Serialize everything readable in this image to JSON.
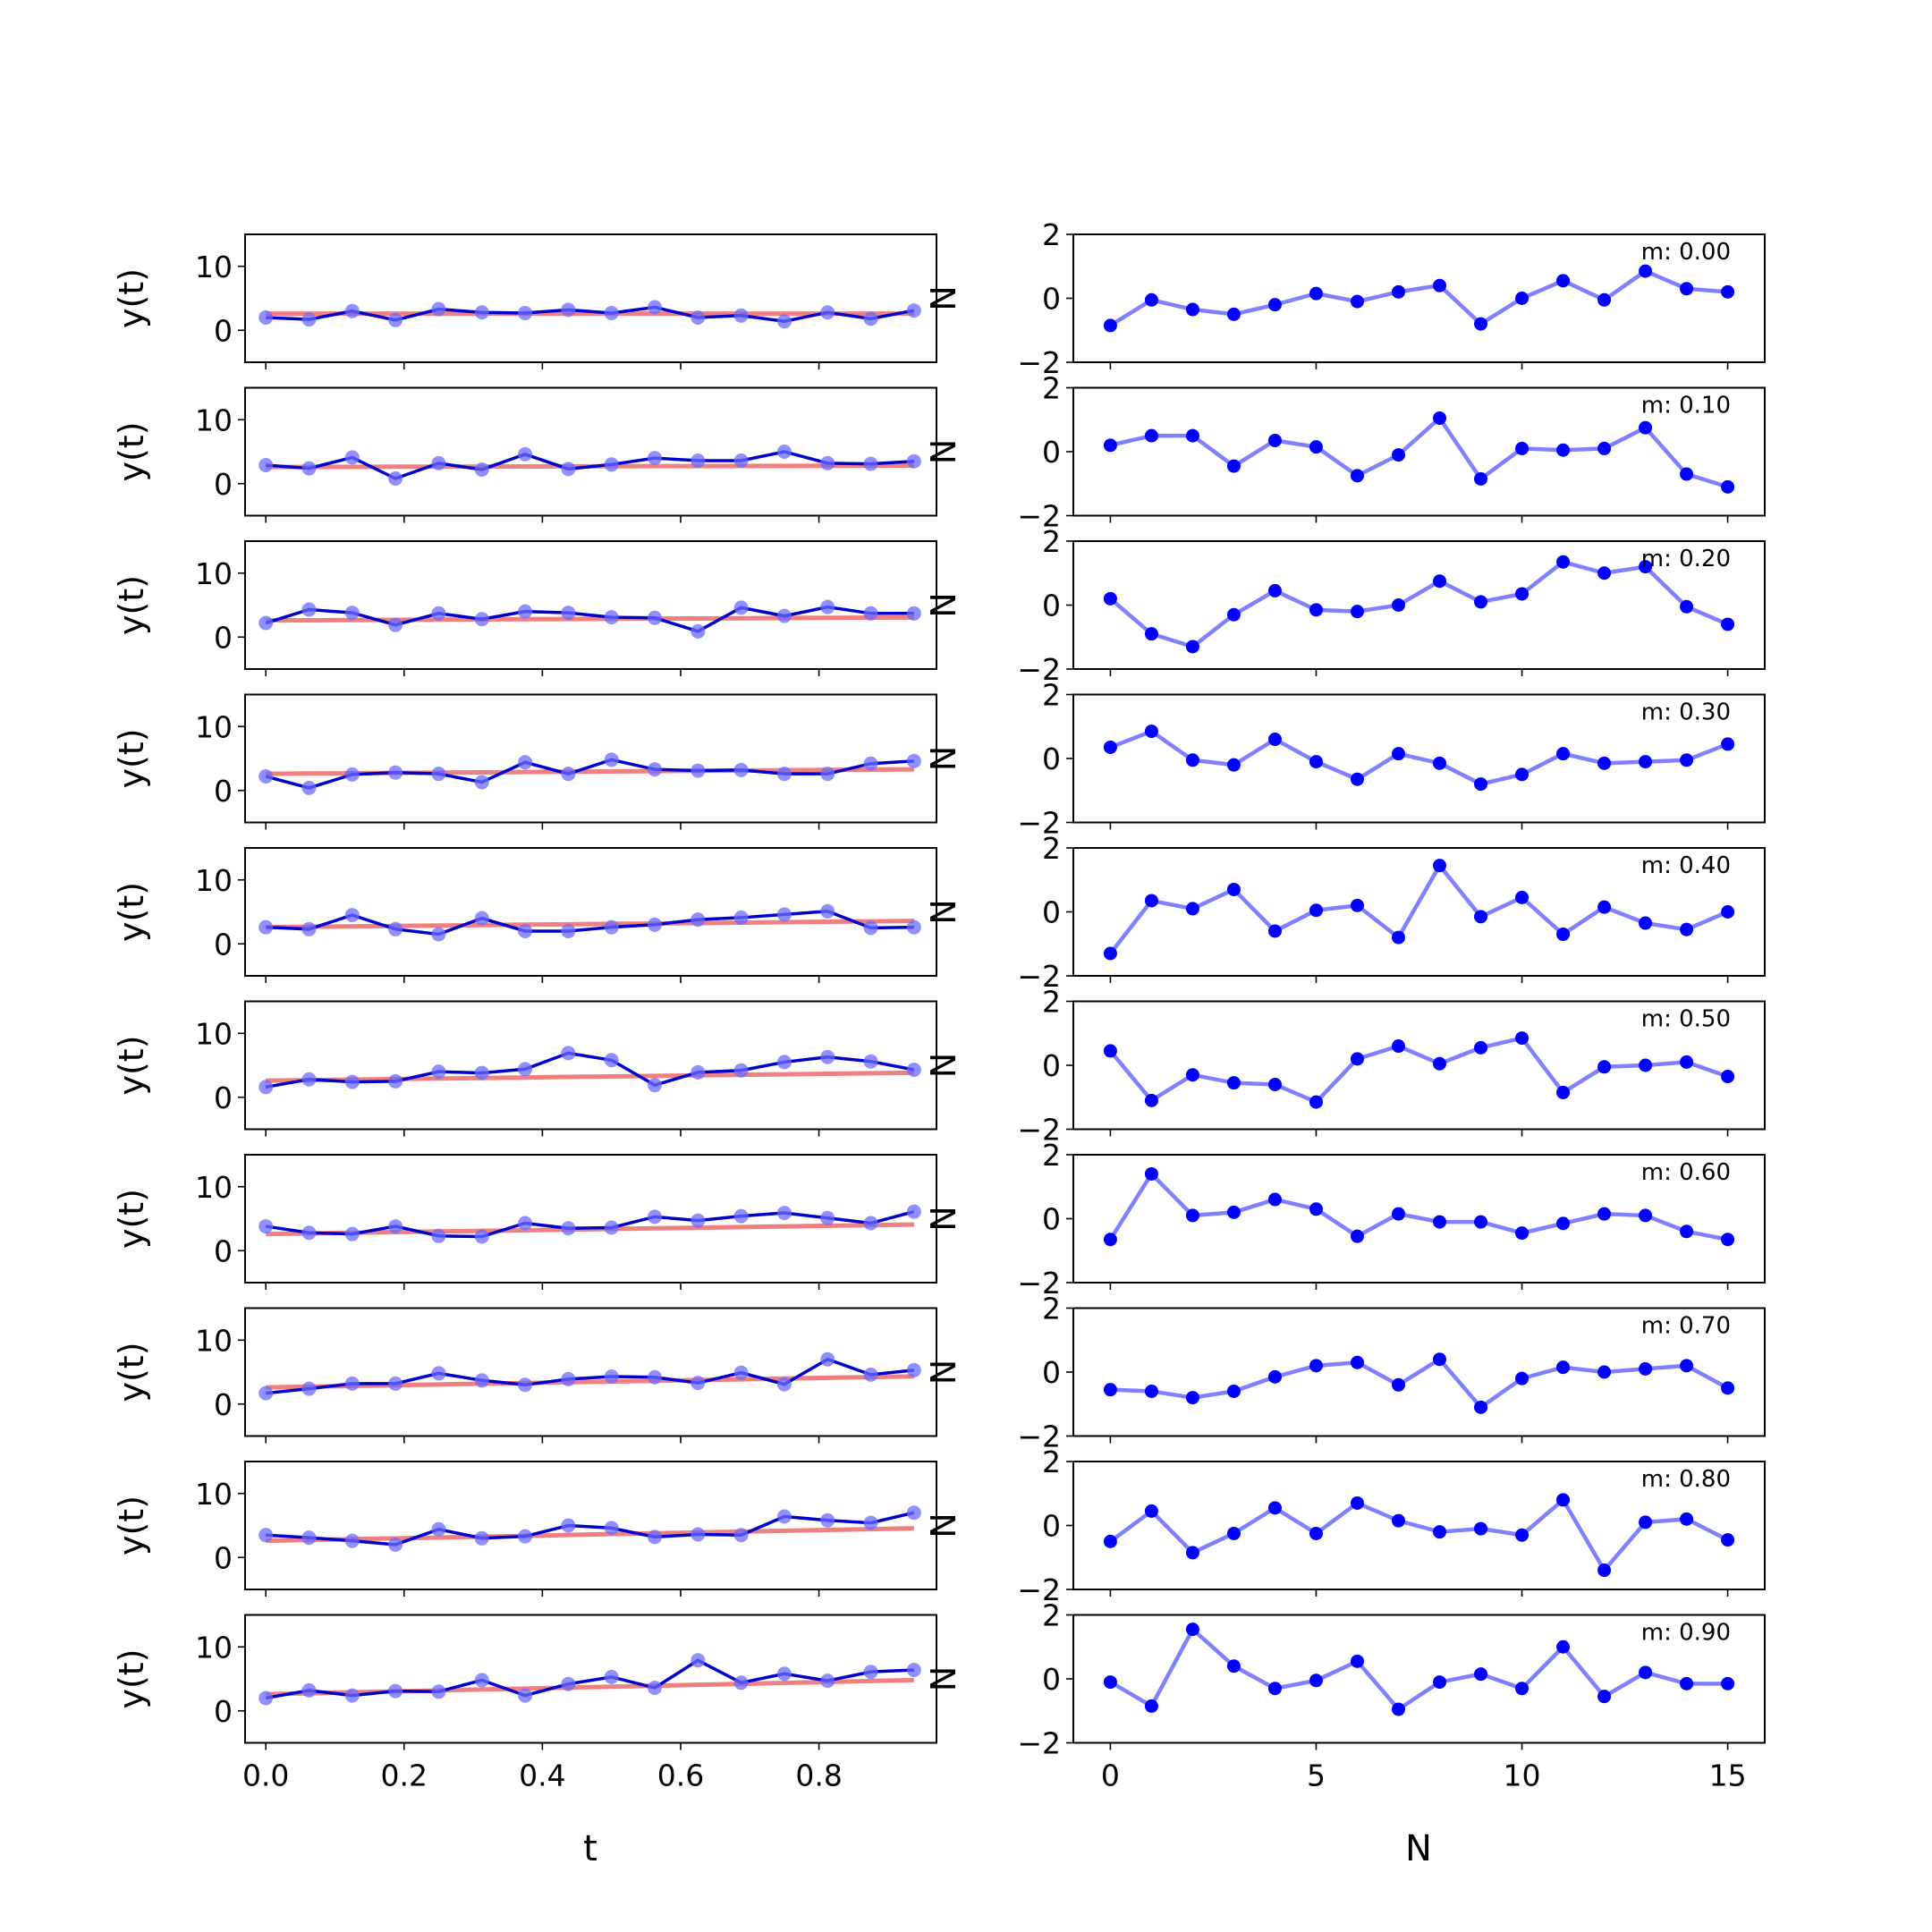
{
  "figure": {
    "left_xlabel": "t",
    "right_xlabel": "N",
    "left_ylabel": "y(t)",
    "right_ylabel": "N",
    "left_xticks": [
      "0.0",
      "0.2",
      "0.4",
      "0.6",
      "0.8"
    ],
    "right_xticks": [
      "0",
      "5",
      "10",
      "15"
    ]
  },
  "colors": {
    "fit_line": "#f08080",
    "data_line": "#0000cc",
    "data_points": "#6a6aff",
    "resid_line": "#8080ff",
    "resid_points": "#0000ff"
  },
  "chart_data": [
    {
      "type": "line",
      "role": "left",
      "index": 0,
      "x": [
        0,
        0.0625,
        0.125,
        0.1875,
        0.25,
        0.3125,
        0.375,
        0.4375,
        0.5,
        0.5625,
        0.625,
        0.6875,
        0.75,
        0.8125,
        0.875,
        0.9375
      ],
      "series": [
        {
          "values": [
            2.0,
            1.7,
            3.0,
            1.6,
            3.3,
            2.8,
            2.7,
            3.2,
            2.7,
            3.6,
            2.0,
            2.3,
            1.4,
            2.8,
            1.8,
            3.1
          ]
        },
        {
          "values": [
            2.6,
            2.6,
            2.6,
            2.6,
            2.6,
            2.6,
            2.6,
            2.6,
            2.6,
            2.6,
            2.6,
            2.6,
            2.6,
            2.6,
            2.6,
            2.6
          ]
        }
      ],
      "ylim": [
        -5,
        15
      ],
      "yticks": [
        0,
        10
      ],
      "xlim": [
        -0.03,
        0.97
      ]
    },
    {
      "type": "line",
      "role": "right",
      "index": 0,
      "annotation": "m: 0.00",
      "x": [
        0,
        1,
        2,
        3,
        4,
        5,
        6,
        7,
        8,
        9,
        10,
        11,
        12,
        13,
        14,
        15
      ],
      "values": [
        -0.85,
        -0.05,
        -0.35,
        -0.5,
        -0.2,
        0.15,
        -0.1,
        0.2,
        0.4,
        -0.8,
        0.0,
        0.55,
        -0.05,
        0.85,
        0.3,
        0.2
      ],
      "ylim": [
        -2,
        2
      ],
      "yticks": [
        -2,
        0,
        2
      ],
      "xlim": [
        -0.9,
        15.9
      ]
    },
    {
      "type": "line",
      "role": "left",
      "index": 1,
      "x": [
        0,
        0.0625,
        0.125,
        0.1875,
        0.25,
        0.3125,
        0.375,
        0.4375,
        0.5,
        0.5625,
        0.625,
        0.6875,
        0.75,
        0.8125,
        0.875,
        0.9375
      ],
      "series": [
        {
          "values": [
            2.9,
            2.4,
            4.1,
            0.8,
            3.2,
            2.2,
            4.6,
            2.3,
            3.0,
            4.0,
            3.6,
            3.6,
            5.0,
            3.2,
            3.1,
            3.5
          ]
        },
        {
          "values": [
            2.6,
            2.62,
            2.63,
            2.65,
            2.66,
            2.68,
            2.69,
            2.71,
            2.72,
            2.74,
            2.75,
            2.77,
            2.78,
            2.8,
            2.81,
            2.83
          ]
        }
      ],
      "ylim": [
        -5,
        15
      ],
      "yticks": [
        0,
        10
      ],
      "xlim": [
        -0.03,
        0.97
      ]
    },
    {
      "type": "line",
      "role": "right",
      "index": 1,
      "annotation": "m: 0.10",
      "x": [
        0,
        1,
        2,
        3,
        4,
        5,
        6,
        7,
        8,
        9,
        10,
        11,
        12,
        13,
        14,
        15
      ],
      "values": [
        0.2,
        0.5,
        0.5,
        -0.45,
        0.35,
        0.15,
        -0.75,
        -0.1,
        1.05,
        -0.85,
        0.1,
        0.05,
        0.1,
        0.75,
        -0.7,
        -1.1
      ],
      "ylim": [
        -2,
        2
      ],
      "yticks": [
        -2,
        0,
        2
      ],
      "xlim": [
        -0.9,
        15.9
      ]
    },
    {
      "type": "line",
      "role": "left",
      "index": 2,
      "x": [
        0,
        0.0625,
        0.125,
        0.1875,
        0.25,
        0.3125,
        0.375,
        0.4375,
        0.5,
        0.5625,
        0.625,
        0.6875,
        0.75,
        0.8125,
        0.875,
        0.9375
      ],
      "series": [
        {
          "values": [
            2.2,
            4.3,
            3.8,
            1.9,
            3.7,
            2.8,
            4.0,
            3.8,
            3.1,
            3.0,
            0.9,
            4.6,
            3.3,
            4.7,
            3.7,
            3.7
          ]
        },
        {
          "values": [
            2.6,
            2.63,
            2.66,
            2.69,
            2.73,
            2.76,
            2.79,
            2.82,
            2.85,
            2.88,
            2.91,
            2.94,
            2.98,
            3.01,
            3.04,
            3.07
          ]
        }
      ],
      "ylim": [
        -5,
        15
      ],
      "yticks": [
        0,
        10
      ],
      "xlim": [
        -0.03,
        0.97
      ]
    },
    {
      "type": "line",
      "role": "right",
      "index": 2,
      "annotation": "m: 0.20",
      "x": [
        0,
        1,
        2,
        3,
        4,
        5,
        6,
        7,
        8,
        9,
        10,
        11,
        12,
        13,
        14,
        15
      ],
      "values": [
        0.2,
        -0.9,
        -1.3,
        -0.3,
        0.45,
        -0.15,
        -0.2,
        0.0,
        0.75,
        0.1,
        0.35,
        1.35,
        1.0,
        1.2,
        -0.05,
        -0.6
      ],
      "ylim": [
        -2,
        2
      ],
      "yticks": [
        -2,
        0,
        2
      ],
      "xlim": [
        -0.9,
        15.9
      ]
    },
    {
      "type": "line",
      "role": "left",
      "index": 3,
      "x": [
        0,
        0.0625,
        0.125,
        0.1875,
        0.25,
        0.3125,
        0.375,
        0.4375,
        0.5,
        0.5625,
        0.625,
        0.6875,
        0.75,
        0.8125,
        0.875,
        0.9375
      ],
      "series": [
        {
          "values": [
            2.2,
            0.4,
            2.5,
            2.8,
            2.6,
            1.3,
            4.4,
            2.6,
            4.8,
            3.3,
            3.1,
            3.2,
            2.6,
            2.6,
            4.2,
            4.6
          ]
        },
        {
          "values": [
            2.6,
            2.65,
            2.69,
            2.74,
            2.79,
            2.84,
            2.88,
            2.93,
            2.98,
            3.03,
            3.07,
            3.12,
            3.17,
            3.22,
            3.26,
            3.31
          ]
        }
      ],
      "ylim": [
        -5,
        15
      ],
      "yticks": [
        0,
        10
      ],
      "xlim": [
        -0.03,
        0.97
      ]
    },
    {
      "type": "line",
      "role": "right",
      "index": 3,
      "annotation": "m: 0.30",
      "x": [
        0,
        1,
        2,
        3,
        4,
        5,
        6,
        7,
        8,
        9,
        10,
        11,
        12,
        13,
        14,
        15
      ],
      "values": [
        0.35,
        0.85,
        -0.05,
        -0.2,
        0.6,
        -0.1,
        -0.65,
        0.15,
        -0.15,
        -0.8,
        -0.5,
        0.15,
        -0.15,
        -0.1,
        -0.05,
        0.45
      ],
      "ylim": [
        -2,
        2
      ],
      "yticks": [
        -2,
        0,
        2
      ],
      "xlim": [
        -0.9,
        15.9
      ]
    },
    {
      "type": "line",
      "role": "left",
      "index": 4,
      "x": [
        0,
        0.0625,
        0.125,
        0.1875,
        0.25,
        0.3125,
        0.375,
        0.4375,
        0.5,
        0.5625,
        0.625,
        0.6875,
        0.75,
        0.8125,
        0.875,
        0.9375
      ],
      "series": [
        {
          "values": [
            2.6,
            2.3,
            4.5,
            2.3,
            1.5,
            4.0,
            2.0,
            2.0,
            2.6,
            3.0,
            3.8,
            4.1,
            4.6,
            5.1,
            2.5,
            2.6
          ]
        },
        {
          "values": [
            2.6,
            2.67,
            2.73,
            2.8,
            2.86,
            2.93,
            3.0,
            3.06,
            3.13,
            3.19,
            3.26,
            3.33,
            3.39,
            3.46,
            3.52,
            3.59
          ]
        }
      ],
      "ylim": [
        -5,
        15
      ],
      "yticks": [
        0,
        10
      ],
      "xlim": [
        -0.03,
        0.97
      ]
    },
    {
      "type": "line",
      "role": "right",
      "index": 4,
      "annotation": "m: 0.40",
      "x": [
        0,
        1,
        2,
        3,
        4,
        5,
        6,
        7,
        8,
        9,
        10,
        11,
        12,
        13,
        14,
        15
      ],
      "values": [
        -1.3,
        0.35,
        0.1,
        0.7,
        -0.6,
        0.05,
        0.2,
        -0.8,
        1.45,
        -0.15,
        0.45,
        -0.7,
        0.15,
        -0.35,
        -0.55,
        0.0
      ],
      "ylim": [
        -2,
        2
      ],
      "yticks": [
        -2,
        0,
        2
      ],
      "xlim": [
        -0.9,
        15.9
      ]
    },
    {
      "type": "line",
      "role": "left",
      "index": 5,
      "x": [
        0,
        0.0625,
        0.125,
        0.1875,
        0.25,
        0.3125,
        0.375,
        0.4375,
        0.5,
        0.5625,
        0.625,
        0.6875,
        0.75,
        0.8125,
        0.875,
        0.9375
      ],
      "series": [
        {
          "values": [
            1.6,
            2.8,
            2.4,
            2.5,
            4.0,
            3.8,
            4.4,
            6.9,
            5.8,
            1.9,
            3.9,
            4.2,
            5.5,
            6.3,
            5.6,
            4.3
          ]
        },
        {
          "values": [
            2.6,
            2.68,
            2.77,
            2.85,
            2.93,
            3.01,
            3.1,
            3.18,
            3.26,
            3.34,
            3.43,
            3.51,
            3.59,
            3.67,
            3.76,
            3.84
          ]
        }
      ],
      "ylim": [
        -5,
        15
      ],
      "yticks": [
        0,
        10
      ],
      "xlim": [
        -0.03,
        0.97
      ]
    },
    {
      "type": "line",
      "role": "right",
      "index": 5,
      "annotation": "m: 0.50",
      "x": [
        0,
        1,
        2,
        3,
        4,
        5,
        6,
        7,
        8,
        9,
        10,
        11,
        12,
        13,
        14,
        15
      ],
      "values": [
        0.45,
        -1.1,
        -0.3,
        -0.55,
        -0.6,
        -1.15,
        0.2,
        0.6,
        0.05,
        0.55,
        0.85,
        -0.85,
        -0.05,
        0.0,
        0.1,
        -0.35
      ],
      "ylim": [
        -2,
        2
      ],
      "yticks": [
        -2,
        0,
        2
      ],
      "xlim": [
        -0.9,
        15.9
      ]
    },
    {
      "type": "line",
      "role": "left",
      "index": 6,
      "x": [
        0,
        0.0625,
        0.125,
        0.1875,
        0.25,
        0.3125,
        0.375,
        0.4375,
        0.5,
        0.5625,
        0.625,
        0.6875,
        0.75,
        0.8125,
        0.875,
        0.9375
      ],
      "series": [
        {
          "values": [
            3.8,
            2.8,
            2.6,
            3.8,
            2.3,
            2.2,
            4.3,
            3.5,
            3.6,
            5.3,
            4.7,
            5.4,
            5.9,
            5.1,
            4.3,
            6.1
          ]
        },
        {
          "values": [
            2.6,
            2.7,
            2.8,
            2.9,
            3.0,
            3.09,
            3.19,
            3.29,
            3.39,
            3.49,
            3.59,
            3.69,
            3.79,
            3.89,
            3.99,
            4.09
          ]
        }
      ],
      "ylim": [
        -5,
        15
      ],
      "yticks": [
        0,
        10
      ],
      "xlim": [
        -0.03,
        0.97
      ]
    },
    {
      "type": "line",
      "role": "right",
      "index": 6,
      "annotation": "m: 0.60",
      "x": [
        0,
        1,
        2,
        3,
        4,
        5,
        6,
        7,
        8,
        9,
        10,
        11,
        12,
        13,
        14,
        15
      ],
      "values": [
        -0.65,
        1.4,
        0.1,
        0.2,
        0.6,
        0.3,
        -0.55,
        0.15,
        -0.1,
        -0.1,
        -0.45,
        -0.15,
        0.15,
        0.1,
        -0.4,
        -0.65
      ],
      "ylim": [
        -2,
        2
      ],
      "yticks": [
        -2,
        0,
        2
      ],
      "xlim": [
        -0.9,
        15.9
      ]
    },
    {
      "type": "line",
      "role": "left",
      "index": 7,
      "x": [
        0,
        0.0625,
        0.125,
        0.1875,
        0.25,
        0.3125,
        0.375,
        0.4375,
        0.5,
        0.5625,
        0.625,
        0.6875,
        0.75,
        0.8125,
        0.875,
        0.9375
      ],
      "series": [
        {
          "values": [
            1.7,
            2.4,
            3.2,
            3.2,
            4.8,
            3.7,
            3.0,
            3.9,
            4.3,
            4.2,
            3.3,
            4.9,
            3.1,
            7.0,
            4.6,
            5.3
          ]
        },
        {
          "values": [
            2.6,
            2.72,
            2.83,
            2.95,
            3.06,
            3.18,
            3.29,
            3.41,
            3.52,
            3.64,
            3.76,
            3.87,
            3.99,
            4.1,
            4.22,
            4.33
          ]
        }
      ],
      "ylim": [
        -5,
        15
      ],
      "yticks": [
        0,
        10
      ],
      "xlim": [
        -0.03,
        0.97
      ]
    },
    {
      "type": "line",
      "role": "right",
      "index": 7,
      "annotation": "m: 0.70",
      "x": [
        0,
        1,
        2,
        3,
        4,
        5,
        6,
        7,
        8,
        9,
        10,
        11,
        12,
        13,
        14,
        15
      ],
      "values": [
        -0.55,
        -0.6,
        -0.8,
        -0.6,
        -0.15,
        0.2,
        0.3,
        -0.4,
        0.4,
        -1.1,
        -0.2,
        0.15,
        0.0,
        0.1,
        0.2,
        -0.5
      ],
      "ylim": [
        -2,
        2
      ],
      "yticks": [
        -2,
        0,
        2
      ],
      "xlim": [
        -0.9,
        15.9
      ]
    },
    {
      "type": "line",
      "role": "left",
      "index": 8,
      "x": [
        0,
        0.0625,
        0.125,
        0.1875,
        0.25,
        0.3125,
        0.375,
        0.4375,
        0.5,
        0.5625,
        0.625,
        0.6875,
        0.75,
        0.8125,
        0.875,
        0.9375
      ],
      "series": [
        {
          "values": [
            3.5,
            3.1,
            2.6,
            2.0,
            4.4,
            3.0,
            3.3,
            5.0,
            4.6,
            3.2,
            3.6,
            3.5,
            6.4,
            5.8,
            5.4,
            7.0
          ]
        },
        {
          "values": [
            2.6,
            2.73,
            2.86,
            2.99,
            3.12,
            3.25,
            3.38,
            3.52,
            3.65,
            3.78,
            3.91,
            4.04,
            4.17,
            4.3,
            4.43,
            4.56
          ]
        }
      ],
      "ylim": [
        -5,
        15
      ],
      "yticks": [
        0,
        10
      ],
      "xlim": [
        -0.03,
        0.97
      ]
    },
    {
      "type": "line",
      "role": "right",
      "index": 8,
      "annotation": "m: 0.80",
      "x": [
        0,
        1,
        2,
        3,
        4,
        5,
        6,
        7,
        8,
        9,
        10,
        11,
        12,
        13,
        14,
        15
      ],
      "values": [
        -0.5,
        0.45,
        -0.85,
        -0.25,
        0.55,
        -0.25,
        0.7,
        0.15,
        -0.2,
        -0.1,
        -0.3,
        0.8,
        -1.4,
        0.1,
        0.2,
        -0.45
      ],
      "ylim": [
        -2,
        2
      ],
      "yticks": [
        -2,
        0,
        2
      ],
      "xlim": [
        -0.9,
        15.9
      ]
    },
    {
      "type": "line",
      "role": "left",
      "index": 9,
      "x": [
        0,
        0.0625,
        0.125,
        0.1875,
        0.25,
        0.3125,
        0.375,
        0.4375,
        0.5,
        0.5625,
        0.625,
        0.6875,
        0.75,
        0.8125,
        0.875,
        0.9375
      ],
      "series": [
        {
          "values": [
            2.0,
            3.2,
            2.4,
            3.1,
            3.0,
            4.8,
            2.4,
            4.2,
            5.3,
            3.6,
            7.9,
            4.4,
            5.8,
            4.7,
            6.1,
            6.4
          ]
        },
        {
          "values": [
            2.6,
            2.75,
            2.9,
            3.04,
            3.19,
            3.34,
            3.48,
            3.63,
            3.78,
            3.92,
            4.07,
            4.22,
            4.37,
            4.51,
            4.66,
            4.81
          ]
        }
      ],
      "ylim": [
        -5,
        15
      ],
      "yticks": [
        0,
        10
      ],
      "xlim": [
        -0.03,
        0.97
      ]
    },
    {
      "type": "line",
      "role": "right",
      "index": 9,
      "annotation": "m: 0.90",
      "x": [
        0,
        1,
        2,
        3,
        4,
        5,
        6,
        7,
        8,
        9,
        10,
        11,
        12,
        13,
        14,
        15
      ],
      "values": [
        -0.1,
        -0.85,
        1.55,
        0.4,
        -0.3,
        -0.05,
        0.55,
        -0.95,
        -0.1,
        0.15,
        -0.3,
        1.0,
        -0.55,
        0.2,
        -0.15,
        -0.15
      ],
      "ylim": [
        -2,
        2
      ],
      "yticks": [
        -2,
        0,
        2
      ],
      "xlim": [
        -0.9,
        15.9
      ]
    }
  ]
}
